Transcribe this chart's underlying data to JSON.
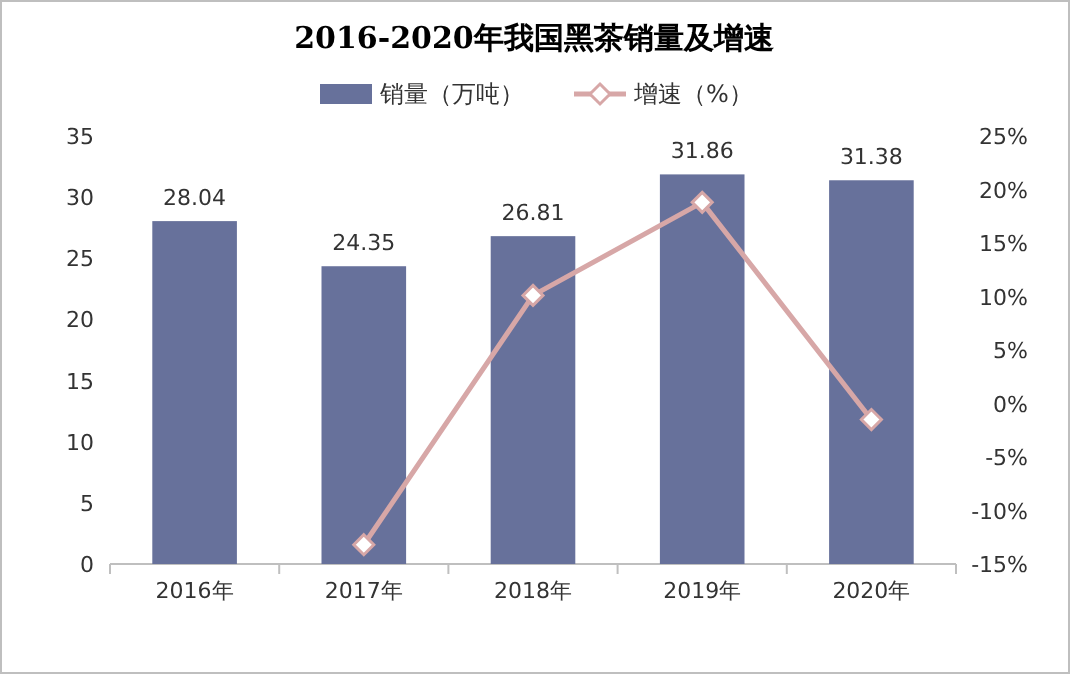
{
  "chart_data": {
    "type": "bar",
    "title": "2016-2020年我国黑茶销量及增速",
    "categories": [
      "2016年",
      "2017年",
      "2018年",
      "2019年",
      "2020年"
    ],
    "series": [
      {
        "name": "销量（万吨）",
        "color": "#67719b",
        "values": [
          28.04,
          24.35,
          26.81,
          31.86,
          31.38
        ],
        "value_labels": [
          "28.04",
          "24.35",
          "26.81",
          "31.86",
          "31.38"
        ]
      },
      {
        "name": "增速（%）",
        "type": "line",
        "axis": "y2",
        "color": "#d7a7a7",
        "marker": "diamond",
        "values": [
          null,
          -13.2,
          10.1,
          18.8,
          -1.5
        ]
      }
    ],
    "ylim": [
      0,
      35
    ],
    "yticks": [
      0,
      5,
      10,
      15,
      20,
      25,
      30,
      35
    ],
    "y2lim": [
      -15,
      25
    ],
    "y2ticks": [
      {
        "value": -15,
        "label": "-15%"
      },
      {
        "value": -10,
        "label": "-10%"
      },
      {
        "value": -5,
        "label": "-5%"
      },
      {
        "value": 0,
        "label": "0%"
      },
      {
        "value": 5,
        "label": "5%"
      },
      {
        "value": 10,
        "label": "10%"
      },
      {
        "value": 15,
        "label": "15%"
      },
      {
        "value": 20,
        "label": "20%"
      },
      {
        "value": 25,
        "label": "25%"
      }
    ],
    "legend": "top",
    "grid": false
  }
}
